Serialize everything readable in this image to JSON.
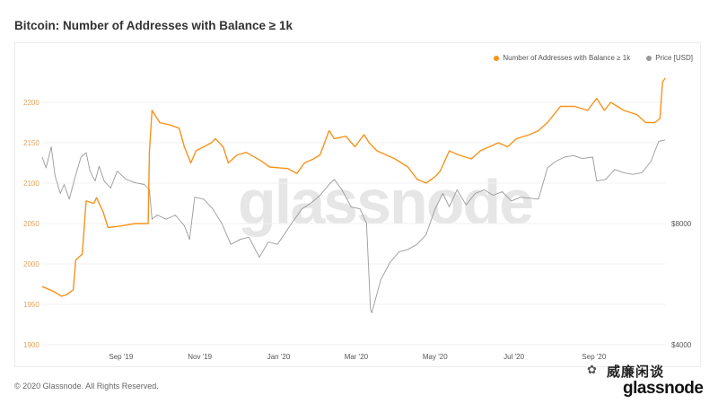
{
  "title": "Bitcoin: Number of Addresses with Balance ≥ 1k",
  "footer": "© 2020 Glassnode. All Rights Reserved.",
  "watermark": {
    "center": "glassnode",
    "logo": "glassnode",
    "cn": "威廉闲谈",
    "icon": "wechat-icon"
  },
  "colors": {
    "addresses": "#f7931a",
    "price": "#9a9a9a",
    "left_axis": "#e0a25a",
    "right_axis": "#555555"
  },
  "chart_data": {
    "type": "line",
    "title": "Bitcoin: Number of Addresses with Balance ≥ 1k",
    "legend_position": "top-right",
    "grid": true,
    "x_ticks": [
      {
        "date": "2019-09-01",
        "label": "Sep '19"
      },
      {
        "date": "2019-11-01",
        "label": "Nov '19"
      },
      {
        "date": "2020-01-01",
        "label": "Jan '20"
      },
      {
        "date": "2020-03-01",
        "label": "Mar '20"
      },
      {
        "date": "2020-05-01",
        "label": "May '20"
      },
      {
        "date": "2020-07-01",
        "label": "Jul '20"
      },
      {
        "date": "2020-09-01",
        "label": "Sep '20"
      }
    ],
    "y_left": {
      "ticks": [
        "1900",
        "1950",
        "2000",
        "2050",
        "2100",
        "2150",
        "2200"
      ],
      "range": [
        1900,
        2240
      ]
    },
    "y_right": {
      "scale": "log",
      "ticks": [
        {
          "value": 4000,
          "label": "$4000"
        },
        {
          "value": 8000,
          "label": "$8000"
        }
      ]
    },
    "series": [
      {
        "name": "Number of Addresses with Balance ≥ 1k",
        "axis": "left",
        "points": [
          [
            "2019-07-02",
            1972
          ],
          [
            "2019-07-08",
            1968
          ],
          [
            "2019-07-12",
            1965
          ],
          [
            "2019-07-17",
            1960
          ],
          [
            "2019-07-21",
            1962
          ],
          [
            "2019-07-26",
            1968
          ],
          [
            "2019-07-28",
            2005
          ],
          [
            "2019-08-02",
            2012
          ],
          [
            "2019-08-05",
            2078
          ],
          [
            "2019-08-11",
            2075
          ],
          [
            "2019-08-13",
            2082
          ],
          [
            "2019-08-18",
            2065
          ],
          [
            "2019-08-22",
            2045
          ],
          [
            "2019-09-01",
            2047
          ],
          [
            "2019-09-12",
            2050
          ],
          [
            "2019-09-22",
            2050
          ],
          [
            "2019-09-23",
            2140
          ],
          [
            "2019-09-25",
            2190
          ],
          [
            "2019-10-01",
            2175
          ],
          [
            "2019-10-09",
            2172
          ],
          [
            "2019-10-16",
            2168
          ],
          [
            "2019-10-20",
            2145
          ],
          [
            "2019-10-25",
            2125
          ],
          [
            "2019-10-29",
            2140
          ],
          [
            "2019-11-10",
            2150
          ],
          [
            "2019-11-13",
            2155
          ],
          [
            "2019-11-19",
            2145
          ],
          [
            "2019-11-23",
            2125
          ],
          [
            "2019-11-30",
            2135
          ],
          [
            "2019-12-07",
            2138
          ],
          [
            "2019-12-18",
            2128
          ],
          [
            "2019-12-25",
            2120
          ],
          [
            "2020-01-08",
            2118
          ],
          [
            "2020-01-15",
            2112
          ],
          [
            "2020-01-21",
            2125
          ],
          [
            "2020-01-28",
            2130
          ],
          [
            "2020-02-02",
            2135
          ],
          [
            "2020-02-09",
            2165
          ],
          [
            "2020-02-13",
            2155
          ],
          [
            "2020-02-22",
            2158
          ],
          [
            "2020-02-29",
            2145
          ],
          [
            "2020-03-07",
            2160
          ],
          [
            "2020-03-11",
            2150
          ],
          [
            "2020-03-17",
            2140
          ],
          [
            "2020-03-31",
            2130
          ],
          [
            "2020-04-10",
            2120
          ],
          [
            "2020-04-17",
            2105
          ],
          [
            "2020-04-24",
            2100
          ],
          [
            "2020-05-01",
            2108
          ],
          [
            "2020-05-05",
            2115
          ],
          [
            "2020-05-12",
            2140
          ],
          [
            "2020-05-19",
            2135
          ],
          [
            "2020-05-29",
            2130
          ],
          [
            "2020-06-05",
            2140
          ],
          [
            "2020-06-19",
            2150
          ],
          [
            "2020-06-26",
            2145
          ],
          [
            "2020-07-03",
            2155
          ],
          [
            "2020-07-13",
            2160
          ],
          [
            "2020-07-20",
            2165
          ],
          [
            "2020-07-27",
            2175
          ],
          [
            "2020-08-06",
            2195
          ],
          [
            "2020-08-17",
            2195
          ],
          [
            "2020-08-27",
            2190
          ],
          [
            "2020-09-03",
            2205
          ],
          [
            "2020-09-09",
            2190
          ],
          [
            "2020-09-14",
            2200
          ],
          [
            "2020-09-24",
            2190
          ],
          [
            "2020-10-04",
            2185
          ],
          [
            "2020-10-11",
            2175
          ],
          [
            "2020-10-18",
            2175
          ],
          [
            "2020-10-22",
            2180
          ],
          [
            "2020-10-24",
            2225
          ],
          [
            "2020-10-26",
            2230
          ]
        ]
      },
      {
        "name": "Price [USD]",
        "axis": "right",
        "points": [
          [
            "2019-07-02",
            11700
          ],
          [
            "2019-07-05",
            11000
          ],
          [
            "2019-07-09",
            12400
          ],
          [
            "2019-07-12",
            10500
          ],
          [
            "2019-07-16",
            9500
          ],
          [
            "2019-07-19",
            10000
          ],
          [
            "2019-07-23",
            9200
          ],
          [
            "2019-07-27",
            10300
          ],
          [
            "2019-08-01",
            11700
          ],
          [
            "2019-08-05",
            12000
          ],
          [
            "2019-08-08",
            10800
          ],
          [
            "2019-08-12",
            10200
          ],
          [
            "2019-08-15",
            11100
          ],
          [
            "2019-08-19",
            10200
          ],
          [
            "2019-08-24",
            9800
          ],
          [
            "2019-08-29",
            10800
          ],
          [
            "2019-09-05",
            10300
          ],
          [
            "2019-09-12",
            10100
          ],
          [
            "2019-09-19",
            10000
          ],
          [
            "2019-09-23",
            9700
          ],
          [
            "2019-09-25",
            8200
          ],
          [
            "2019-09-29",
            8400
          ],
          [
            "2019-10-06",
            8200
          ],
          [
            "2019-10-13",
            8400
          ],
          [
            "2019-10-20",
            7900
          ],
          [
            "2019-10-24",
            7300
          ],
          [
            "2019-10-28",
            9300
          ],
          [
            "2019-11-04",
            9200
          ],
          [
            "2019-11-11",
            8700
          ],
          [
            "2019-11-18",
            8000
          ],
          [
            "2019-11-25",
            7100
          ],
          [
            "2019-12-02",
            7300
          ],
          [
            "2019-12-09",
            7400
          ],
          [
            "2019-12-17",
            6600
          ],
          [
            "2019-12-24",
            7200
          ],
          [
            "2019-12-31",
            7100
          ],
          [
            "2020-01-05",
            7500
          ],
          [
            "2020-01-12",
            8100
          ],
          [
            "2020-01-19",
            8700
          ],
          [
            "2020-01-26",
            9000
          ],
          [
            "2020-02-02",
            9400
          ],
          [
            "2020-02-09",
            10000
          ],
          [
            "2020-02-13",
            10300
          ],
          [
            "2020-02-19",
            9700
          ],
          [
            "2020-02-26",
            8800
          ],
          [
            "2020-03-04",
            8700
          ],
          [
            "2020-03-09",
            8000
          ],
          [
            "2020-03-12",
            4900
          ],
          [
            "2020-03-13",
            4800
          ],
          [
            "2020-03-16",
            5200
          ],
          [
            "2020-03-20",
            5800
          ],
          [
            "2020-03-27",
            6400
          ],
          [
            "2020-04-03",
            6800
          ],
          [
            "2020-04-10",
            6900
          ],
          [
            "2020-04-17",
            7100
          ],
          [
            "2020-04-24",
            7500
          ],
          [
            "2020-05-01",
            8700
          ],
          [
            "2020-05-07",
            9500
          ],
          [
            "2020-05-12",
            8800
          ],
          [
            "2020-05-18",
            9700
          ],
          [
            "2020-05-25",
            8900
          ],
          [
            "2020-06-01",
            9500
          ],
          [
            "2020-06-08",
            9700
          ],
          [
            "2020-06-15",
            9400
          ],
          [
            "2020-06-22",
            9600
          ],
          [
            "2020-06-29",
            9100
          ],
          [
            "2020-07-06",
            9300
          ],
          [
            "2020-07-13",
            9250
          ],
          [
            "2020-07-20",
            9200
          ],
          [
            "2020-07-27",
            11000
          ],
          [
            "2020-08-02",
            11400
          ],
          [
            "2020-08-09",
            11700
          ],
          [
            "2020-08-16",
            11800
          ],
          [
            "2020-08-23",
            11600
          ],
          [
            "2020-08-31",
            11700
          ],
          [
            "2020-09-03",
            10200
          ],
          [
            "2020-09-10",
            10300
          ],
          [
            "2020-09-17",
            10900
          ],
          [
            "2020-09-24",
            10700
          ],
          [
            "2020-10-01",
            10600
          ],
          [
            "2020-10-08",
            10700
          ],
          [
            "2020-10-15",
            11400
          ],
          [
            "2020-10-21",
            12800
          ],
          [
            "2020-10-26",
            12900
          ]
        ]
      }
    ]
  }
}
